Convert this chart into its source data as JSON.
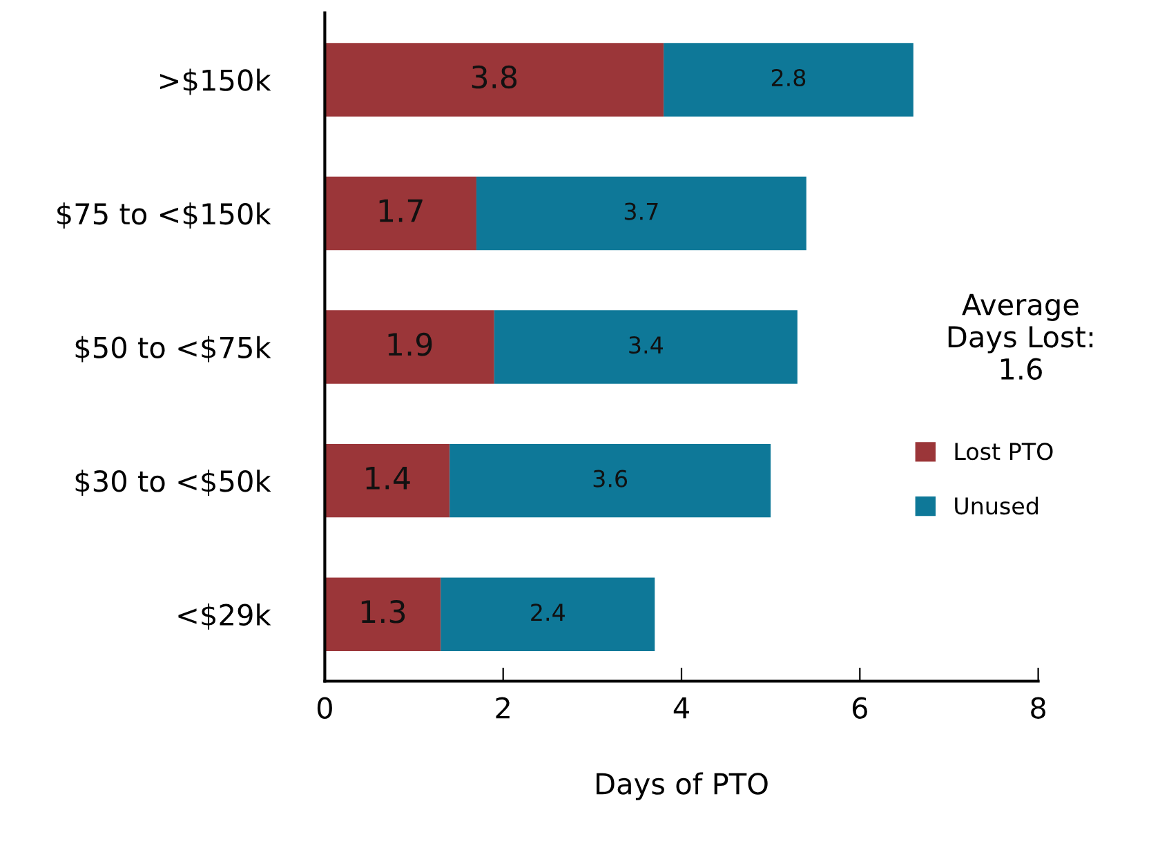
{
  "chart_data": {
    "type": "bar",
    "orientation": "horizontal",
    "stacked": true,
    "xlabel": "Days of PTO",
    "categories": [
      ">$150k",
      "$75 to <$150k",
      "$50 to <$75k",
      "$30 to <$50k",
      "<$29k"
    ],
    "series": [
      {
        "name": "Lost PTO",
        "color": "#9b3639",
        "values": [
          3.8,
          1.7,
          1.9,
          1.4,
          1.3
        ]
      },
      {
        "name": "Unused",
        "color": "#0e7898",
        "values": [
          2.8,
          3.7,
          3.4,
          3.6,
          2.4
        ]
      }
    ],
    "xlim": [
      0,
      8
    ],
    "xticks": [
      0,
      2,
      4,
      6,
      8
    ],
    "data_labels": true,
    "grid": false,
    "legend": "right",
    "annotations": [
      "Average\nDays Lost:\n1.6"
    ]
  }
}
